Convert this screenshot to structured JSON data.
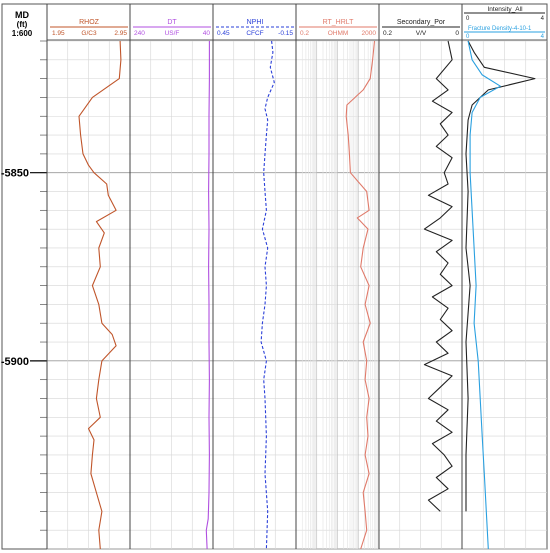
{
  "chart_data": {
    "type": "line",
    "depth_axis": {
      "title": "MD",
      "unit": "(ft)",
      "scale": "1:600",
      "range": [
        5815,
        5950
      ],
      "major_ticks": [
        5850,
        5900
      ],
      "major_labels": [
        "5850",
        "5900"
      ]
    },
    "tracks": [
      {
        "name": "RHOZ",
        "unit": "G/C3",
        "min_label": "1.95",
        "max_label": "2.95",
        "range": [
          1.95,
          2.95
        ],
        "color": "#c0552a",
        "style": "solid",
        "depth": [
          5815,
          5820,
          5825,
          5830,
          5835,
          5840,
          5845,
          5848,
          5850,
          5853,
          5856,
          5860,
          5863,
          5866,
          5870,
          5875,
          5880,
          5885,
          5890,
          5893,
          5896,
          5900,
          5905,
          5910,
          5915,
          5918,
          5921,
          5925,
          5930,
          5935,
          5940,
          5945,
          5950
        ],
        "values": [
          2.85,
          2.86,
          2.84,
          2.5,
          2.33,
          2.35,
          2.38,
          2.45,
          2.52,
          2.68,
          2.7,
          2.8,
          2.55,
          2.65,
          2.58,
          2.6,
          2.5,
          2.58,
          2.62,
          2.75,
          2.8,
          2.62,
          2.58,
          2.55,
          2.6,
          2.45,
          2.52,
          2.5,
          2.48,
          2.55,
          2.62,
          2.58,
          2.6
        ]
      },
      {
        "name": "DT",
        "unit": "US/F",
        "min_label": "240",
        "max_label": "40",
        "range": [
          240,
          40
        ],
        "color": "#b04fe0",
        "style": "solid",
        "depth": [
          5815,
          5825,
          5835,
          5845,
          5855,
          5865,
          5875,
          5885,
          5895,
          5905,
          5915,
          5925,
          5935,
          5942,
          5945,
          5950
        ],
        "values": [
          44,
          44,
          45,
          45,
          46,
          45,
          46,
          45,
          45,
          44,
          45,
          44,
          45,
          47,
          52,
          50
        ]
      },
      {
        "name": "NPHI",
        "unit": "CFCF",
        "min_label": "0.45",
        "max_label": "-0.15",
        "range": [
          0.45,
          -0.15
        ],
        "color": "#2a3fd8",
        "style": "dashed",
        "depth": [
          5815,
          5818,
          5822,
          5826,
          5830,
          5833,
          5836,
          5840,
          5845,
          5850,
          5855,
          5860,
          5865,
          5870,
          5875,
          5880,
          5885,
          5890,
          5895,
          5900,
          5905,
          5910,
          5920,
          5930,
          5940,
          5950
        ],
        "values": [
          0.02,
          0.01,
          0.03,
          0.0,
          0.05,
          0.07,
          0.05,
          0.06,
          0.07,
          0.08,
          0.07,
          0.06,
          0.09,
          0.05,
          0.07,
          0.06,
          0.07,
          0.09,
          0.1,
          0.06,
          0.08,
          0.07,
          0.06,
          0.07,
          0.05,
          0.06
        ]
      },
      {
        "name": "RT_HRLT",
        "unit": "OHMM",
        "min_label": "0.2",
        "max_label": "2000",
        "range": [
          0.2,
          2000
        ],
        "scale": "log",
        "color": "#e07a6a",
        "style": "solid",
        "depth": [
          5815,
          5820,
          5825,
          5828,
          5832,
          5835,
          5840,
          5845,
          5850,
          5855,
          5860,
          5862,
          5865,
          5870,
          5875,
          5880,
          5885,
          5890,
          5895,
          5900,
          5905,
          5910,
          5915,
          5920,
          5925,
          5930,
          5935,
          5940,
          5945,
          5950
        ],
        "values": [
          1500,
          1200,
          900,
          400,
          60,
          55,
          70,
          80,
          90,
          600,
          800,
          200,
          700,
          400,
          300,
          800,
          500,
          900,
          400,
          600,
          500,
          800,
          600,
          700,
          500,
          800,
          400,
          500,
          600,
          300
        ]
      },
      {
        "name": "Secondary_Por",
        "unit": "V/V",
        "min_label": "0.2",
        "max_label": "0",
        "range": [
          0.2,
          0
        ],
        "color": "#222222",
        "style": "solid",
        "depth": [
          5815,
          5820,
          5825,
          5828,
          5831,
          5834,
          5837,
          5840,
          5843,
          5846,
          5850,
          5853,
          5856,
          5859,
          5862,
          5865,
          5868,
          5871,
          5874,
          5877,
          5880,
          5883,
          5886,
          5889,
          5892,
          5895,
          5898,
          5901,
          5904,
          5907,
          5910,
          5913,
          5916,
          5919,
          5922,
          5925,
          5928,
          5931,
          5934,
          5937,
          5940
        ],
        "values": [
          0.03,
          0.02,
          0.06,
          0.03,
          0.07,
          0.02,
          0.05,
          0.03,
          0.06,
          0.02,
          0.04,
          0.03,
          0.08,
          0.02,
          0.05,
          0.09,
          0.02,
          0.06,
          0.03,
          0.05,
          0.02,
          0.07,
          0.03,
          0.05,
          0.02,
          0.06,
          0.03,
          0.09,
          0.02,
          0.05,
          0.08,
          0.03,
          0.06,
          0.02,
          0.07,
          0.04,
          0.02,
          0.06,
          0.03,
          0.08,
          0.05
        ]
      },
      {
        "name": "Intensity_All",
        "unit": "",
        "min_label": "0",
        "max_label": "4",
        "range": [
          0,
          4
        ],
        "color": "#222222",
        "style": "solid",
        "depth": [
          5815,
          5818,
          5822,
          5825,
          5828,
          5832,
          5836,
          5845,
          5855,
          5870,
          5880,
          5895,
          5910,
          5925,
          5940
        ],
        "values": [
          0.2,
          0.5,
          1.0,
          3.5,
          1.2,
          0.4,
          0.2,
          0.1,
          0.2,
          0.1,
          0.3,
          0.1,
          0.2,
          0.1,
          0.1
        ]
      },
      {
        "name": "Fracture Density-4-10-1",
        "unit": "",
        "min_label": "0",
        "max_label": "4",
        "range": [
          0,
          4
        ],
        "color": "#2aa0e0",
        "style": "solid",
        "depth": [
          5815,
          5820,
          5824,
          5827,
          5830,
          5834,
          5840,
          5850,
          5860,
          5870,
          5880,
          5890,
          5900,
          5910,
          5920,
          5930,
          5940,
          5950
        ],
        "values": [
          0.2,
          0.4,
          0.9,
          1.8,
          0.8,
          0.4,
          0.3,
          0.3,
          0.4,
          0.5,
          0.6,
          0.5,
          0.7,
          0.8,
          0.9,
          1.0,
          1.1,
          1.2
        ]
      }
    ],
    "grid": true
  }
}
